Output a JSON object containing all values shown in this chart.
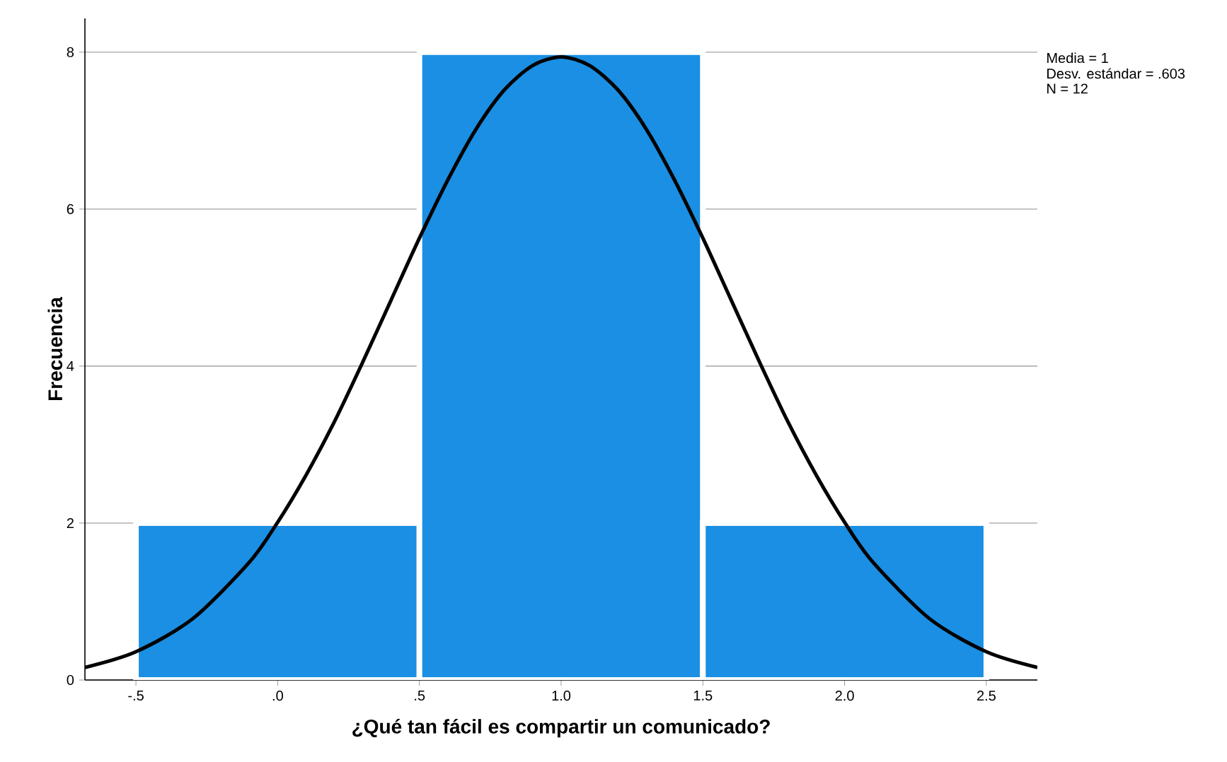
{
  "chart_data": {
    "type": "histogram",
    "xlabel": "¿Qué tan fácil es compartir un comunicado?",
    "ylabel": "Frecuencia",
    "bins": [
      -0.5,
      0.5,
      1.5,
      2.5
    ],
    "values": [
      2,
      8,
      2
    ],
    "color": "#1a8fe3",
    "series": [
      {
        "type": "line",
        "color": "#000000",
        "x": [
          -0.68,
          -0.5,
          -0.3,
          -0.1,
          0.0,
          0.1,
          0.2,
          0.3,
          0.4,
          0.5,
          0.6,
          0.7,
          0.8,
          0.9,
          1.0,
          1.1,
          1.2,
          1.3,
          1.4,
          1.5,
          1.6,
          1.7,
          1.8,
          1.9,
          2.0,
          2.1,
          2.3,
          2.5,
          2.68
        ],
        "values": [
          0.16,
          0.36,
          0.78,
          1.5,
          2.01,
          2.61,
          3.29,
          4.05,
          4.84,
          5.63,
          6.37,
          7.02,
          7.52,
          7.83,
          7.94,
          7.83,
          7.52,
          7.02,
          6.37,
          5.63,
          4.84,
          4.05,
          3.29,
          2.61,
          2.01,
          1.5,
          0.78,
          0.36,
          0.16
        ]
      }
    ],
    "xlim": [
      -0.68,
      2.68
    ],
    "ylim": [
      0,
      8.43
    ],
    "xticks": [
      {
        "value": -0.5,
        "label": "-.5"
      },
      {
        "value": 0,
        "label": ".0"
      },
      {
        "value": 0.5,
        "label": ".5"
      },
      {
        "value": 1,
        "label": "1.0"
      },
      {
        "value": 1.5,
        "label": "1.5"
      },
      {
        "value": 2,
        "label": "2.0"
      },
      {
        "value": 2.5,
        "label": "2.5"
      }
    ],
    "yticks": [
      0,
      2,
      4,
      6,
      8
    ],
    "grid": "y",
    "annotations": [
      "Media = 1",
      "Desv. estándar = .603",
      "N = 12"
    ]
  }
}
